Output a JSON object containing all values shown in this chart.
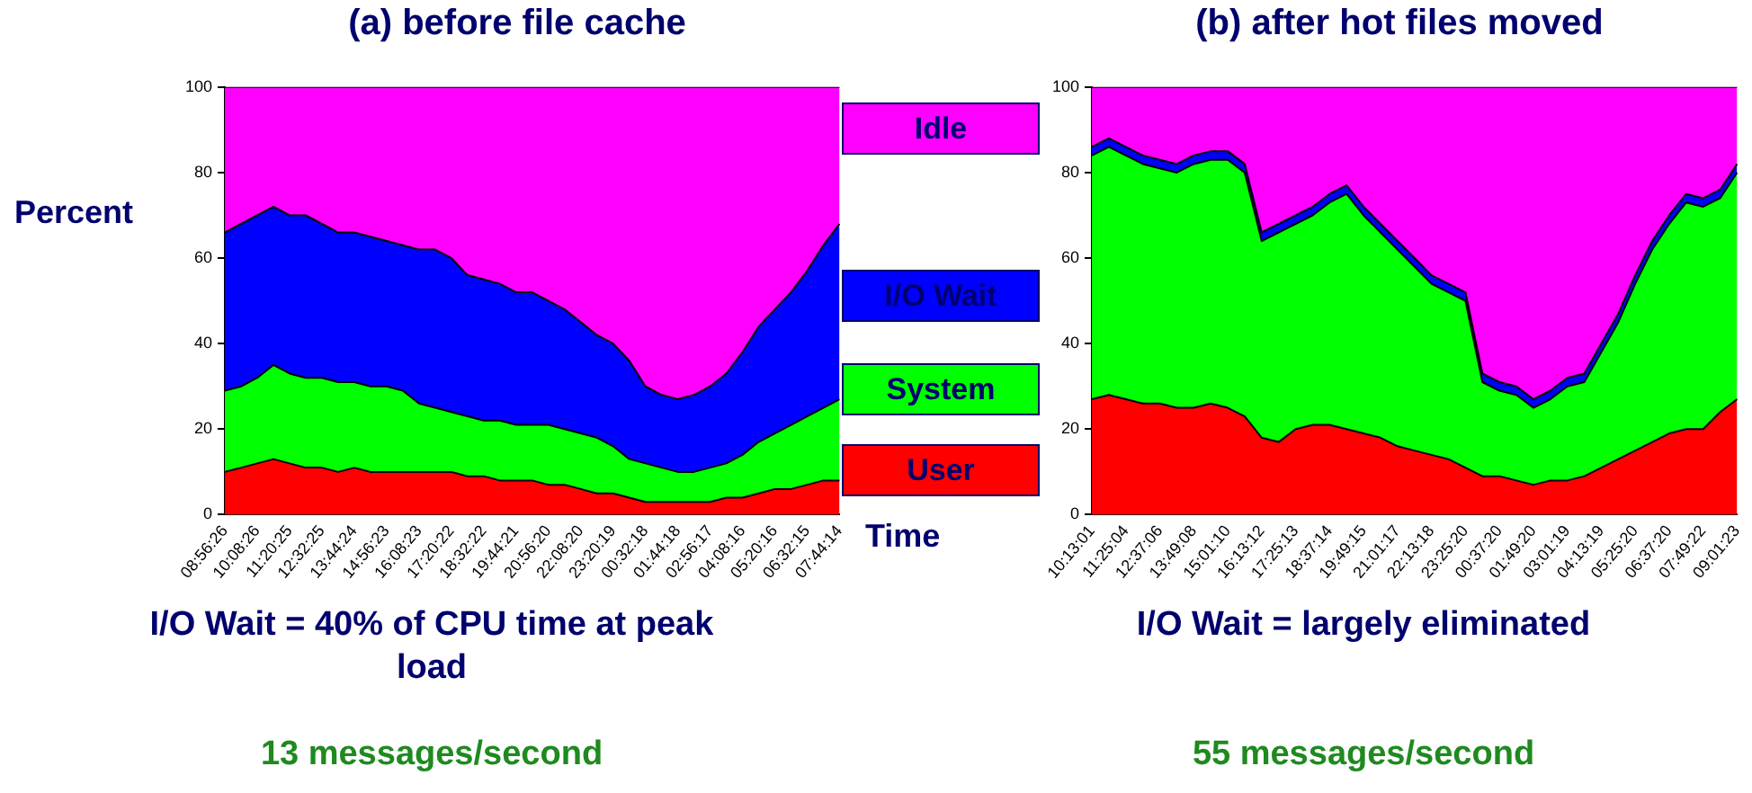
{
  "chart_data": [
    {
      "type": "area",
      "title": "(a) before file cache",
      "ylabel": "Percent",
      "xlabel": "Time",
      "stacked": true,
      "legend": "right",
      "grid": false,
      "marker": "none",
      "categories": [
        "08:56:26",
        null,
        "10:08:26",
        null,
        "11:20:25",
        null,
        "12:32:25",
        null,
        "13:44:24",
        null,
        "14:56:23",
        null,
        "16:08:23",
        null,
        "17:20:22",
        null,
        "18:32:22",
        null,
        "19:44:21",
        null,
        "20:56:20",
        null,
        "22:08:20",
        null,
        "23:20:19",
        null,
        "00:32:18",
        null,
        "01:44:18",
        null,
        "02:56:17",
        null,
        "04:08:16",
        null,
        "05:20:16",
        null,
        "06:32:15",
        null,
        "07:44:14"
      ],
      "ylim": [
        0,
        100
      ],
      "yticks": [
        0,
        20,
        40,
        60,
        80,
        100
      ],
      "series": [
        {
          "name": "User",
          "color": "#ff0000",
          "values": [
            10,
            11,
            12,
            13,
            12,
            11,
            11,
            10,
            11,
            10,
            10,
            10,
            10,
            10,
            10,
            9,
            9,
            8,
            8,
            8,
            7,
            7,
            6,
            5,
            5,
            4,
            3,
            3,
            3,
            3,
            3,
            4,
            4,
            5,
            6,
            6,
            7,
            8,
            8
          ]
        },
        {
          "name": "System",
          "color": "#00ff00",
          "values": [
            19,
            19,
            20,
            22,
            21,
            21,
            21,
            21,
            20,
            20,
            20,
            19,
            16,
            15,
            14,
            14,
            13,
            14,
            13,
            13,
            14,
            13,
            13,
            13,
            11,
            9,
            9,
            8,
            7,
            7,
            8,
            8,
            10,
            12,
            13,
            15,
            16,
            17,
            19
          ]
        },
        {
          "name": "I/O Wait",
          "color": "#0000ff",
          "values": [
            37,
            38,
            38,
            37,
            37,
            38,
            36,
            35,
            35,
            35,
            34,
            34,
            36,
            37,
            36,
            33,
            33,
            32,
            31,
            31,
            29,
            28,
            26,
            24,
            24,
            23,
            18,
            17,
            17,
            18,
            19,
            21,
            24,
            27,
            29,
            31,
            34,
            38,
            41
          ]
        },
        {
          "name": "Idle",
          "color": "#ff00ff",
          "values": [
            34,
            32,
            30,
            28,
            30,
            30,
            32,
            34,
            34,
            35,
            36,
            37,
            38,
            38,
            40,
            44,
            45,
            46,
            48,
            48,
            50,
            52,
            55,
            58,
            60,
            64,
            70,
            72,
            73,
            72,
            70,
            67,
            62,
            56,
            52,
            48,
            43,
            37,
            32
          ]
        }
      ],
      "annotations": [
        "I/O Wait = 40% of CPU time at peak load",
        "13 messages/second"
      ]
    },
    {
      "type": "area",
      "title": "(b) after hot files moved",
      "stacked": true,
      "legend": false,
      "grid": false,
      "marker": "none",
      "categories": [
        "10:13:01",
        null,
        "11:25:04",
        null,
        "12:37:06",
        null,
        "13:49:08",
        null,
        "15:01:10",
        null,
        "16:13:12",
        null,
        "17:25:13",
        null,
        "18:37:14",
        null,
        "19:49:15",
        null,
        "21:01:17",
        null,
        "22:13:18",
        null,
        "23:25:20",
        null,
        "00:37:20",
        null,
        "01:49:20",
        null,
        "03:01:19",
        null,
        "04:13:19",
        null,
        "05:25:20",
        null,
        "06:37:20",
        null,
        "07:49:22",
        null,
        "09:01:23"
      ],
      "ylim": [
        0,
        100
      ],
      "yticks": [
        0,
        20,
        40,
        60,
        80,
        100
      ],
      "series": [
        {
          "color": "#ff0000",
          "values": [
            27,
            28,
            27,
            26,
            26,
            25,
            25,
            26,
            25,
            23,
            18,
            17,
            20,
            21,
            21,
            20,
            19,
            18,
            16,
            15,
            14,
            13,
            11,
            9,
            9,
            8,
            7,
            8,
            8,
            9,
            11,
            13,
            15,
            17,
            19,
            20,
            20,
            24,
            27
          ]
        },
        {
          "color": "#00ff00",
          "values": [
            57,
            58,
            57,
            56,
            55,
            55,
            57,
            57,
            58,
            57,
            46,
            49,
            48,
            49,
            52,
            55,
            51,
            48,
            46,
            43,
            40,
            39,
            39,
            22,
            20,
            20,
            18,
            19,
            22,
            22,
            27,
            32,
            39,
            45,
            49,
            53,
            52,
            50,
            53
          ]
        },
        {
          "color": "#0000ff",
          "values": [
            2,
            2,
            2,
            2,
            2,
            2,
            2,
            2,
            2,
            2,
            2,
            2,
            2,
            2,
            2,
            2,
            2,
            2,
            2,
            2,
            2,
            2,
            2,
            2,
            2,
            2,
            2,
            2,
            2,
            2,
            2,
            2,
            2,
            2,
            2,
            2,
            2,
            2,
            2
          ]
        },
        {
          "color": "#ff00ff",
          "values": [
            14,
            12,
            14,
            16,
            17,
            18,
            16,
            15,
            15,
            18,
            34,
            32,
            30,
            28,
            25,
            23,
            28,
            32,
            36,
            40,
            44,
            46,
            48,
            67,
            69,
            70,
            73,
            71,
            68,
            67,
            60,
            53,
            44,
            36,
            30,
            25,
            26,
            24,
            18
          ]
        }
      ],
      "annotations": [
        "I/O Wait = largely eliminated",
        "55 messages/second"
      ]
    }
  ]
}
